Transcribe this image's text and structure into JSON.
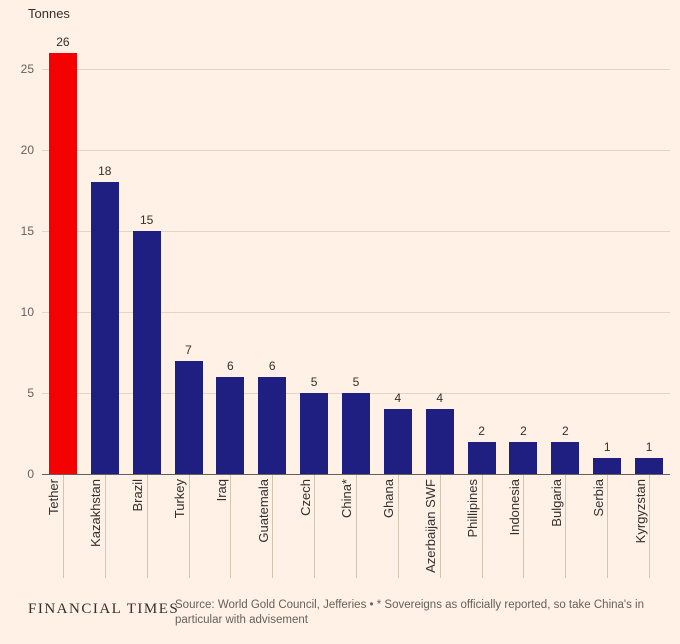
{
  "ylabel": "Tonnes",
  "footer": {
    "brand": "FINANCIAL TIMES",
    "source_lines": [
      "Source: World Gold Council, Jefferies • * Sovereigns as officially reported, so take China's in",
      "particular with advisement"
    ]
  },
  "colors": {
    "background": "#fff1e5",
    "bar": "#1f1f82",
    "highlight": "#f40202",
    "grid": "#e4d6c5",
    "axis": "#66605c",
    "tick_line": "#d2c5b4",
    "tick_text": "#66605c",
    "label_text": "#33302e"
  },
  "chart_data": {
    "type": "bar",
    "categories": [
      "Tether",
      "Kazakhstan",
      "Brazil",
      "Turkey",
      "Iraq",
      "Guatemala",
      "Czech",
      "China*",
      "Ghana",
      "Azerbaijan SWF",
      "Phillipines",
      "Indonesia",
      "Bulgaria",
      "Serbia",
      "Kyrgyzstan"
    ],
    "values": [
      26,
      18,
      15,
      7,
      6,
      6,
      5,
      5,
      4,
      4,
      2,
      2,
      2,
      1,
      1
    ],
    "highlight_index": 0,
    "title": "",
    "xlabel": "",
    "ylabel": "Tonnes",
    "ylim": [
      0,
      27.4
    ],
    "yticks": [
      0,
      5,
      10,
      15,
      20,
      25
    ],
    "grid": "horizontal",
    "value_labels": true,
    "legend": "none"
  }
}
